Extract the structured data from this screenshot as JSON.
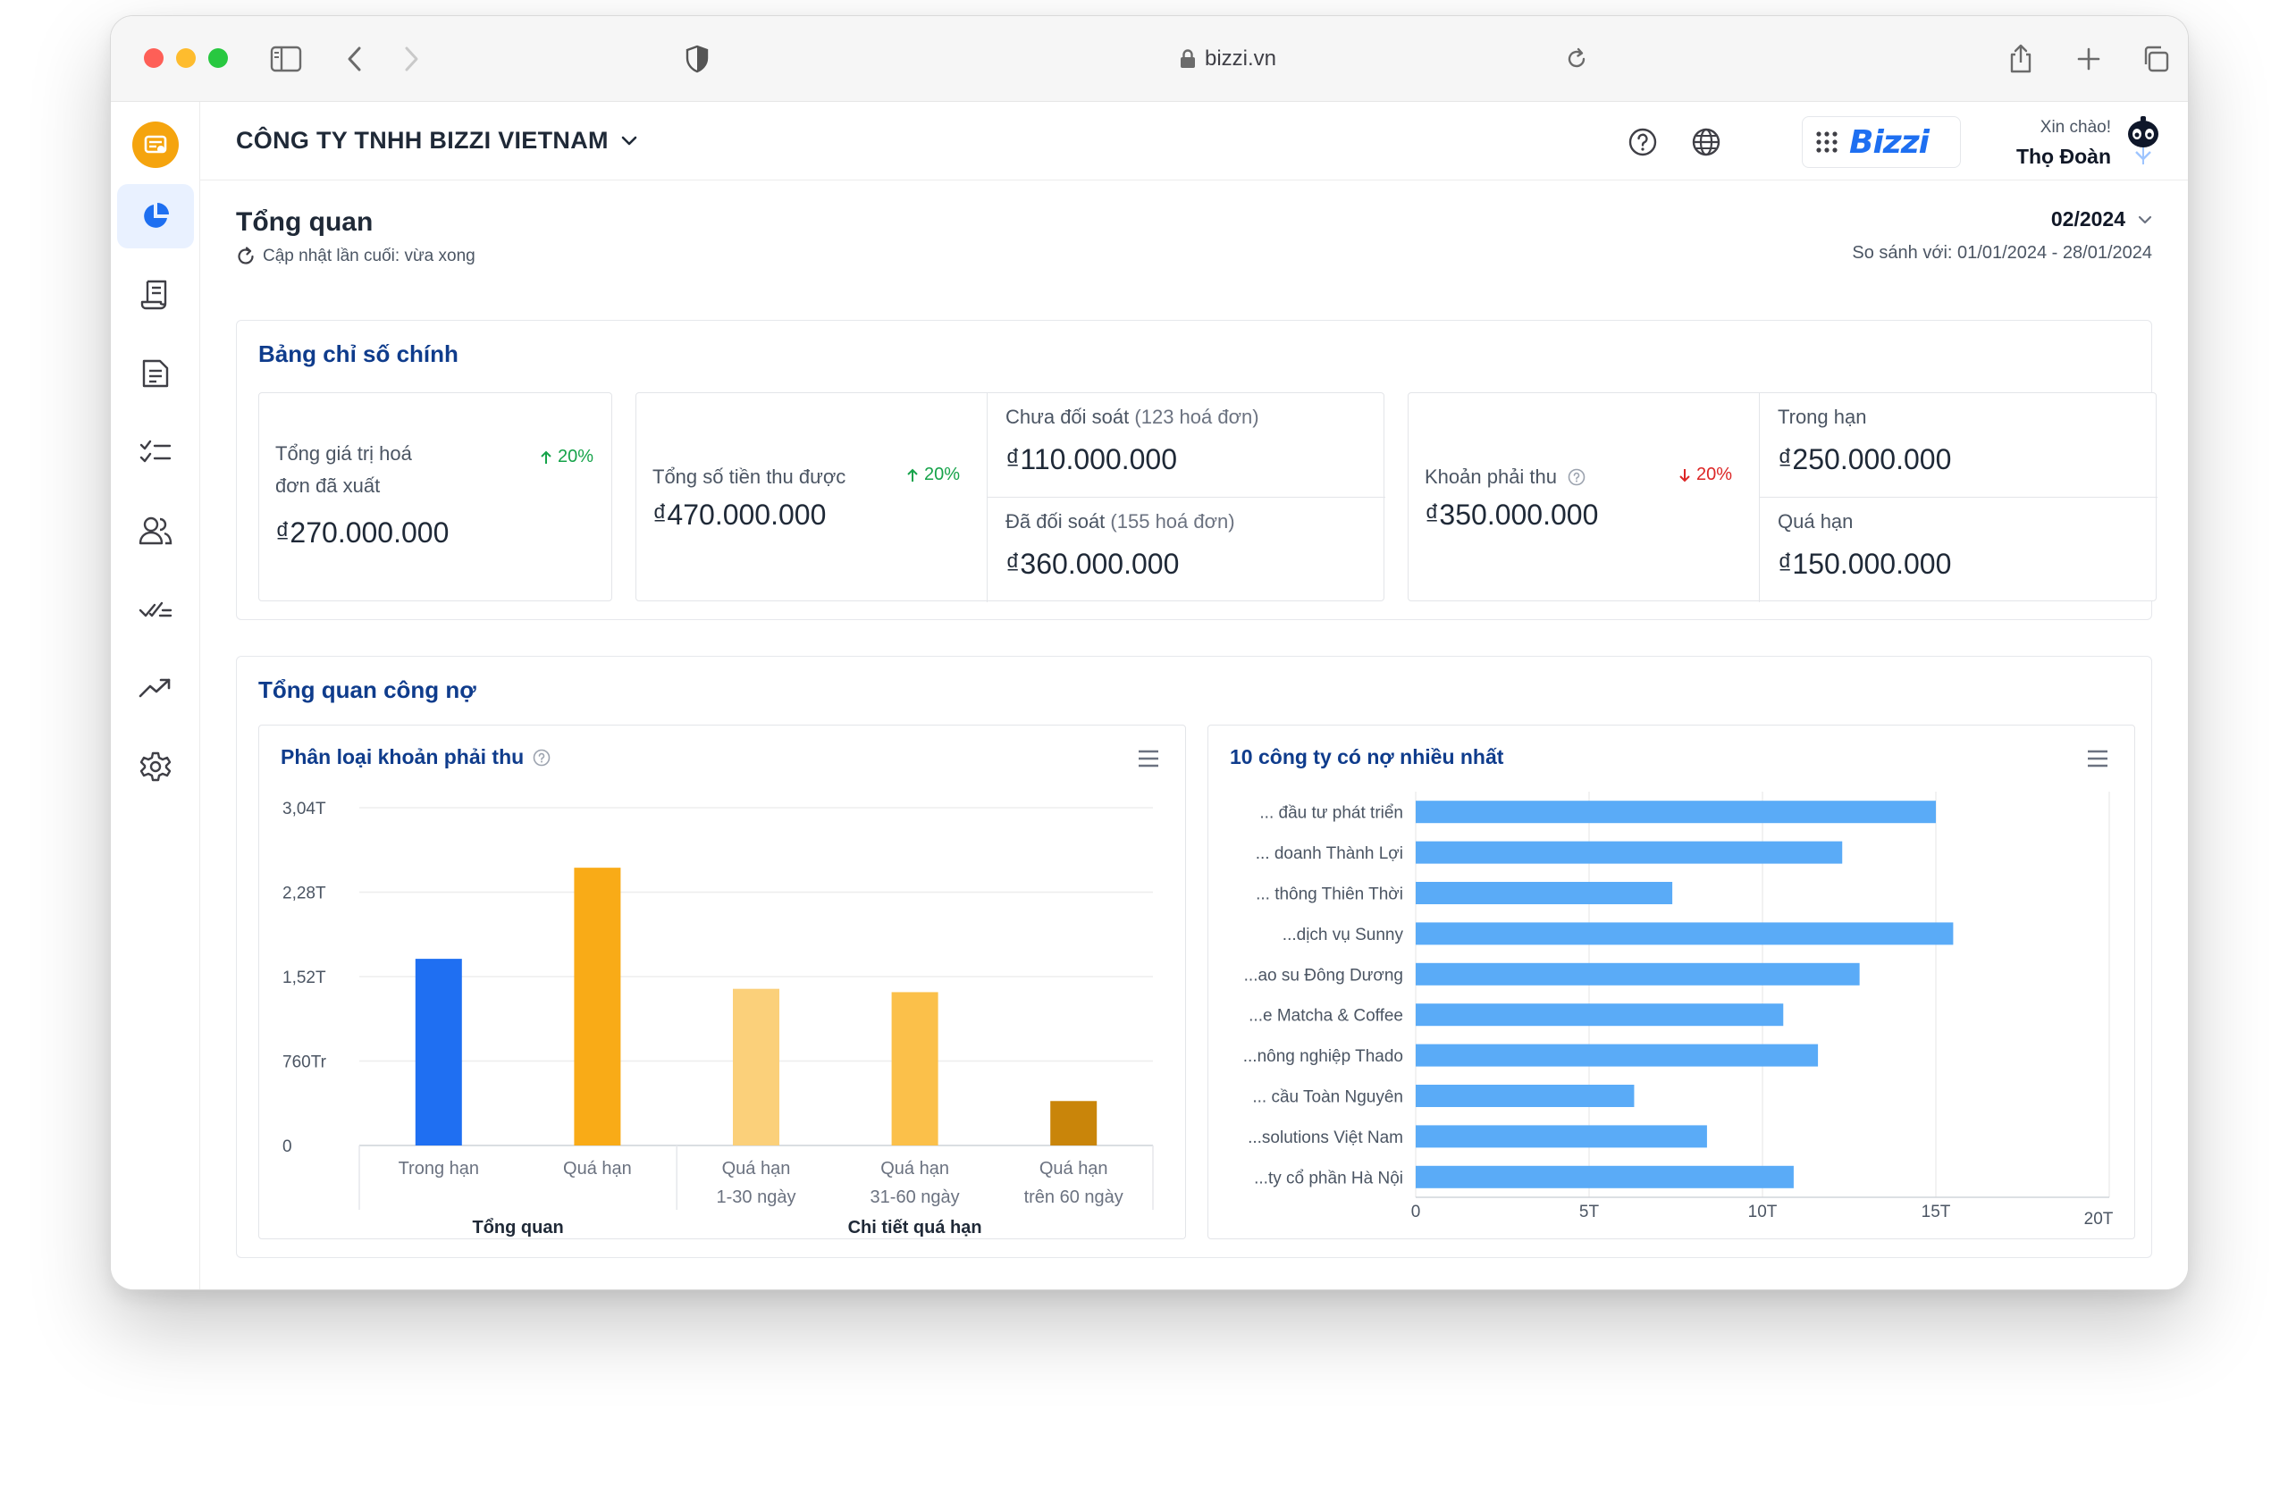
{
  "browser": {
    "url": "bizzi.vn"
  },
  "header": {
    "company": "CÔNG TY TNHH BIZZI VIETNAM",
    "brand": "Bizzi",
    "greeting": "Xin chào!",
    "user_name": "Thọ Đoàn"
  },
  "sidebar": {
    "items": [
      {
        "name": "dashboard",
        "icon": "pie-chart-icon",
        "active": true
      },
      {
        "name": "invoices",
        "icon": "receipt-icon"
      },
      {
        "name": "documents",
        "icon": "document-icon"
      },
      {
        "name": "tasks",
        "icon": "checklist-icon"
      },
      {
        "name": "customers",
        "icon": "users-icon"
      },
      {
        "name": "approvals",
        "icon": "double-check-icon"
      },
      {
        "name": "reports",
        "icon": "trend-icon"
      },
      {
        "name": "settings",
        "icon": "gear-icon"
      }
    ]
  },
  "page": {
    "title": "Tổng quan",
    "updated": "Cập nhật lần cuối: vừa xong",
    "period": "02/2024",
    "compare": "So sánh với: 01/01/2024 - 28/01/2024"
  },
  "kpi_panel": {
    "title": "Bảng chỉ số chính",
    "card1": {
      "label_line1": "Tổng giá trị hoá",
      "label_line2": "đơn đã xuất",
      "delta": "20%",
      "value": "₫270.000.000"
    },
    "card2": {
      "label": "Tổng số tiền thu được",
      "delta": "20%",
      "value": "₫470.000.000",
      "sub1_label": "Chưa đối soát",
      "sub1_note": "(123 hoá đơn)",
      "sub1_value": "₫110.000.000",
      "sub2_label": "Đã đối soát",
      "sub2_note": "(155 hoá đơn)",
      "sub2_value": "₫360.000.000"
    },
    "card3": {
      "label": "Khoản phải thu",
      "delta": "20%",
      "value": "₫350.000.000",
      "sub1_label": "Trong hạn",
      "sub1_value": "₫250.000.000",
      "sub2_label": "Quá hạn",
      "sub2_value": "₫150.000.000"
    }
  },
  "debt_panel": {
    "title": "Tổng quan công nợ"
  },
  "colors": {
    "primary": "#1e6ff1",
    "heading": "#0f3c8c",
    "bar_blue": "#1f6ff2",
    "bar_orange": "#f9ab17",
    "bar_light": "#fbd07a",
    "bar_mid": "#fbc04a",
    "bar_dark": "#c9850a",
    "bar_horizontal": "#5aabf7"
  },
  "chart_data": [
    {
      "type": "bar",
      "title": "Phân loại khoản phải thu",
      "categories": [
        "Trong hạn",
        "Quá hạn",
        "Quá hạn 1-30 ngày",
        "Quá hạn 31-60 ngày",
        "Quá hạn trên 60 ngày"
      ],
      "category_lines": [
        [
          "Trong hạn"
        ],
        [
          "Quá hạn"
        ],
        [
          "Quá hạn",
          "1-30 ngày"
        ],
        [
          "Quá hạn",
          "31-60 ngày"
        ],
        [
          "Quá hạn",
          "trên 60 ngày"
        ]
      ],
      "values": [
        1.68,
        2.5,
        1.41,
        1.38,
        0.4
      ],
      "bar_colors": [
        "#1f6ff2",
        "#f9ab17",
        "#fbd07a",
        "#fbc04a",
        "#c9850a"
      ],
      "groups": [
        {
          "label": "Tổng quan",
          "span": [
            0,
            1
          ]
        },
        {
          "label": "Chi tiết quá hạn",
          "span": [
            2,
            4
          ]
        }
      ],
      "ylim": [
        0,
        3.04
      ],
      "yticks": [
        0,
        0.76,
        1.52,
        2.28,
        3.04
      ],
      "ytick_labels": [
        "0",
        "760Tr",
        "1,52T",
        "2,28T",
        "3,04T"
      ],
      "xlabel": "",
      "ylabel": "",
      "grid": true
    },
    {
      "type": "bar",
      "orientation": "horizontal",
      "title": "10 công ty có nợ nhiều nhất",
      "categories": [
        "... đầu tư phát triển",
        "... doanh Thành Lợi",
        "... thông Thiên Thời",
        "...dịch vụ Sunny",
        "...ao su Đông Dương",
        "...e Matcha & Coffee",
        "...nông nghiệp Thado",
        "... cầu Toàn Nguyên",
        "...solutions Việt Nam",
        "...ty cổ phần Hà Nội"
      ],
      "values": [
        15.0,
        12.3,
        7.4,
        15.5,
        12.8,
        10.6,
        11.6,
        6.3,
        8.4,
        10.9
      ],
      "xlim": [
        0,
        20
      ],
      "xticks": [
        0,
        5,
        10,
        15,
        20
      ],
      "xtick_labels": [
        "0",
        "5T",
        "10T",
        "15T",
        "20T"
      ],
      "xlabel": "",
      "ylabel": "",
      "grid": true
    }
  ]
}
